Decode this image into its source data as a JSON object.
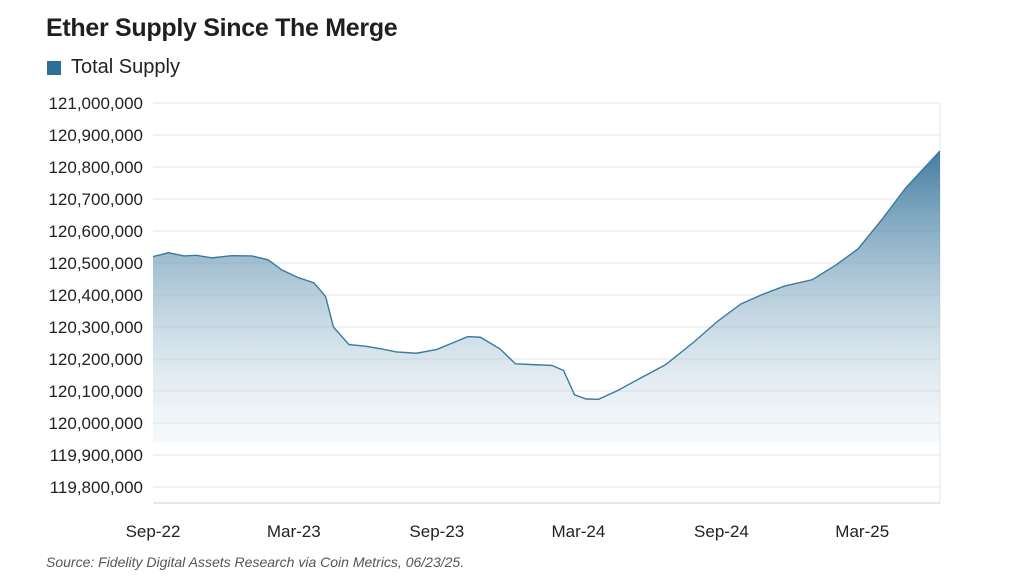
{
  "header": {
    "title": "Ether Supply Since The Merge"
  },
  "legend": {
    "label": "Total Supply",
    "color": "#2e6f96"
  },
  "footer": {
    "source": "Source: Fidelity Digital Assets Research via Coin Metrics, 06/23/25."
  },
  "chart_data": {
    "type": "area",
    "title": "Ether Supply Since The Merge",
    "xlabel": "",
    "ylabel": "",
    "ylim": [
      119750000,
      121000000
    ],
    "xlim": [
      "2022-09-15",
      "2025-06-23"
    ],
    "y_ticks": [
      121000000,
      120900000,
      120800000,
      120700000,
      120600000,
      120500000,
      120400000,
      120300000,
      120200000,
      120100000,
      120000000,
      119900000,
      119800000
    ],
    "y_tick_labels": [
      "121,000,000",
      "120,900,000",
      "120,800,000",
      "120,700,000",
      "120,600,000",
      "120,500,000",
      "120,400,000",
      "120,300,000",
      "120,200,000",
      "120,100,000",
      "120,000,000",
      "119,900,000",
      "119,800,000"
    ],
    "x_ticks": [
      "2022-09-15",
      "2023-03-15",
      "2023-09-15",
      "2024-03-15",
      "2024-09-15",
      "2025-03-15"
    ],
    "x_tick_labels": [
      "Sep-22",
      "Mar-23",
      "Sep-23",
      "Mar-24",
      "Sep-24",
      "Mar-25"
    ],
    "grid": true,
    "legend_position": "top-left",
    "series": [
      {
        "name": "Total Supply",
        "color": "#2e6f96",
        "points": [
          {
            "x": "2022-09-15",
            "y": 120520000
          },
          {
            "x": "2022-10-05",
            "y": 120532000
          },
          {
            "x": "2022-10-25",
            "y": 120522000
          },
          {
            "x": "2022-11-10",
            "y": 120524000
          },
          {
            "x": "2022-11-30",
            "y": 120516000
          },
          {
            "x": "2022-12-25",
            "y": 120523000
          },
          {
            "x": "2023-01-20",
            "y": 120522000
          },
          {
            "x": "2023-02-10",
            "y": 120510000
          },
          {
            "x": "2023-02-28",
            "y": 120478000
          },
          {
            "x": "2023-03-20",
            "y": 120455000
          },
          {
            "x": "2023-04-10",
            "y": 120438000
          },
          {
            "x": "2023-04-25",
            "y": 120395000
          },
          {
            "x": "2023-05-05",
            "y": 120300000
          },
          {
            "x": "2023-05-25",
            "y": 120245000
          },
          {
            "x": "2023-06-15",
            "y": 120240000
          },
          {
            "x": "2023-07-05",
            "y": 120232000
          },
          {
            "x": "2023-07-25",
            "y": 120222000
          },
          {
            "x": "2023-08-20",
            "y": 120218000
          },
          {
            "x": "2023-09-15",
            "y": 120230000
          },
          {
            "x": "2023-10-10",
            "y": 120255000
          },
          {
            "x": "2023-10-25",
            "y": 120270000
          },
          {
            "x": "2023-11-10",
            "y": 120268000
          },
          {
            "x": "2023-12-05",
            "y": 120232000
          },
          {
            "x": "2023-12-25",
            "y": 120185000
          },
          {
            "x": "2024-01-20",
            "y": 120182000
          },
          {
            "x": "2024-02-10",
            "y": 120180000
          },
          {
            "x": "2024-02-25",
            "y": 120164000
          },
          {
            "x": "2024-03-10",
            "y": 120088000
          },
          {
            "x": "2024-03-25",
            "y": 120075000
          },
          {
            "x": "2024-04-10",
            "y": 120074000
          },
          {
            "x": "2024-05-05",
            "y": 120102000
          },
          {
            "x": "2024-06-01",
            "y": 120138000
          },
          {
            "x": "2024-07-05",
            "y": 120182000
          },
          {
            "x": "2024-08-10",
            "y": 120252000
          },
          {
            "x": "2024-09-10",
            "y": 120318000
          },
          {
            "x": "2024-10-10",
            "y": 120372000
          },
          {
            "x": "2024-11-05",
            "y": 120400000
          },
          {
            "x": "2024-12-05",
            "y": 120428000
          },
          {
            "x": "2025-01-10",
            "y": 120448000
          },
          {
            "x": "2025-02-10",
            "y": 120495000
          },
          {
            "x": "2025-03-10",
            "y": 120545000
          },
          {
            "x": "2025-04-10",
            "y": 120638000
          },
          {
            "x": "2025-05-10",
            "y": 120735000
          },
          {
            "x": "2025-06-23",
            "y": 120850000
          }
        ]
      }
    ]
  }
}
